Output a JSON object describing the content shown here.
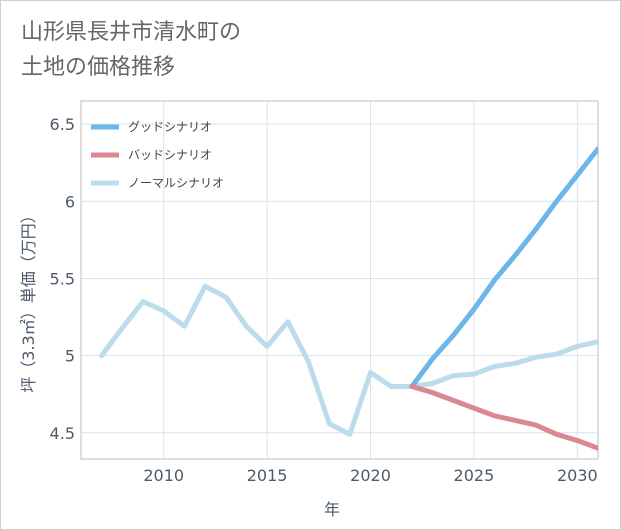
{
  "title_lines": [
    "山形県長井市清水町の",
    "土地の価格推移"
  ],
  "chart_data": {
    "type": "line",
    "title": "山形県長井市清水町の土地の価格推移",
    "xlabel": "年",
    "ylabel": "坪（3.3㎡）単価（万円）",
    "xlim": [
      2006,
      2031
    ],
    "ylim": [
      4.33,
      6.65
    ],
    "x_ticks": [
      2010,
      2015,
      2020,
      2025,
      2030
    ],
    "y_ticks": [
      4.5,
      5,
      5.5,
      6,
      6.5
    ],
    "x_tick_labels": [
      "2010",
      "2015",
      "2020",
      "2025",
      "2030"
    ],
    "y_tick_labels": [
      "4.5",
      "5",
      "5.5",
      "6",
      "6.5"
    ],
    "legend_position": "top-left",
    "series": [
      {
        "name": "グッドシナリオ",
        "color": "#6cb6ea",
        "x": [
          2022,
          2023,
          2024,
          2025,
          2026,
          2027,
          2028,
          2029,
          2030,
          2031
        ],
        "values": [
          4.8,
          4.98,
          5.13,
          5.3,
          5.49,
          5.65,
          5.82,
          6.0,
          6.17,
          6.34
        ]
      },
      {
        "name": "バッドシナリオ",
        "color": "#dc8890",
        "x": [
          2022,
          2023,
          2024,
          2025,
          2026,
          2027,
          2028,
          2029,
          2030,
          2031
        ],
        "values": [
          4.8,
          4.76,
          4.71,
          4.66,
          4.61,
          4.58,
          4.55,
          4.49,
          4.45,
          4.4
        ]
      },
      {
        "name": "ノーマルシナリオ",
        "color": "#bcdcec",
        "x": [
          2007,
          2008,
          2009,
          2010,
          2011,
          2012,
          2013,
          2014,
          2015,
          2016,
          2017,
          2018,
          2019,
          2020,
          2021,
          2022,
          2023,
          2024,
          2025,
          2026,
          2027,
          2028,
          2029,
          2030,
          2031
        ],
        "values": [
          5.0,
          5.18,
          5.35,
          5.29,
          5.19,
          5.45,
          5.38,
          5.19,
          5.06,
          5.22,
          4.96,
          4.56,
          4.49,
          4.89,
          4.8,
          4.8,
          4.82,
          4.87,
          4.88,
          4.93,
          4.95,
          4.99,
          5.01,
          5.06,
          5.09
        ]
      }
    ]
  }
}
